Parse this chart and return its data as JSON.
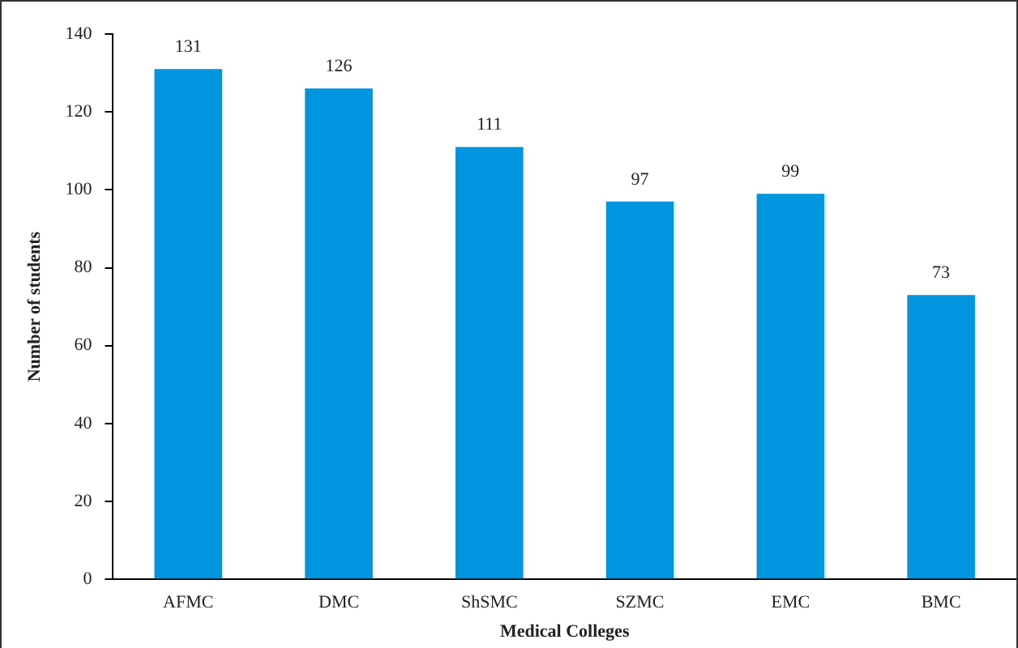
{
  "chart_data": {
    "type": "bar",
    "xlabel": "Medical Colleges",
    "ylabel": "Number of students",
    "categories": [
      "AFMC",
      "DMC",
      "ShSMC",
      "SZMC",
      "EMC",
      "BMC"
    ],
    "values": [
      131,
      126,
      111,
      97,
      99,
      73
    ],
    "color": "#0095de",
    "ylim": [
      0,
      140
    ],
    "yticks": [
      0,
      20,
      40,
      60,
      80,
      100,
      120,
      140
    ],
    "grid": false,
    "legend": false,
    "data_labels": true
  }
}
